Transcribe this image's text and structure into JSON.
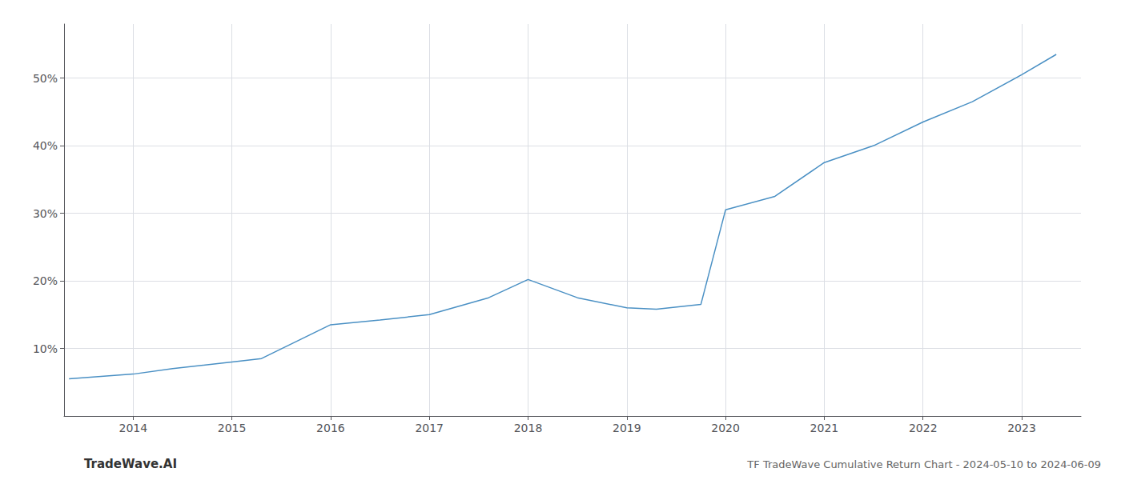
{
  "chart_data": {
    "type": "line",
    "title": "TF TradeWave Cumulative Return Chart - 2024-05-10 to 2024-06-09",
    "annotations": [
      "TradeWave.AI"
    ],
    "x": [
      2013.35,
      2014.0,
      2014.4,
      2015.0,
      2015.3,
      2016.0,
      2016.5,
      2017.0,
      2017.6,
      2018.0,
      2018.5,
      2019.0,
      2019.3,
      2019.75,
      2020.0,
      2020.5,
      2021.0,
      2021.5,
      2022.0,
      2022.5,
      2023.0,
      2023.35
    ],
    "values": [
      5.5,
      6.2,
      7.0,
      8.0,
      8.5,
      13.5,
      14.2,
      15.0,
      17.5,
      20.2,
      17.5,
      16.0,
      15.8,
      16.5,
      30.5,
      32.5,
      37.5,
      40.0,
      43.5,
      46.5,
      50.5,
      53.5
    ],
    "color": "#4a90c4",
    "xlim": [
      2013.3,
      2023.6
    ],
    "xticks": [
      2014,
      2015,
      2016,
      2017,
      2018,
      2019,
      2020,
      2021,
      2022,
      2023
    ],
    "ylim": [
      0,
      58
    ],
    "yticks": [
      {
        "value": 10,
        "label": "10%"
      },
      {
        "value": 20,
        "label": "20%"
      },
      {
        "value": 30,
        "label": "30%"
      },
      {
        "value": 40,
        "label": "40%"
      },
      {
        "value": 50,
        "label": "50%"
      }
    ],
    "grid": true
  }
}
